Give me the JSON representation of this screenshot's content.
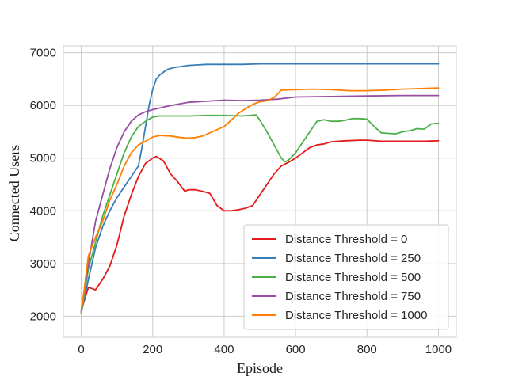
{
  "chart_data": {
    "type": "line",
    "xlabel": "Episode",
    "ylabel": "Connected Users",
    "xlim": [
      -50,
      1050
    ],
    "ylim": [
      1600,
      7130
    ],
    "xticks": [
      0,
      200,
      400,
      600,
      800,
      1000
    ],
    "yticks": [
      2000,
      3000,
      4000,
      5000,
      6000,
      7000
    ],
    "grid": true,
    "legend_position": "lower-right",
    "series": [
      {
        "name": "Distance Threshold = 0",
        "color": "#e41a1c",
        "x": [
          0,
          20,
          40,
          60,
          80,
          100,
          120,
          140,
          160,
          180,
          200,
          210,
          230,
          250,
          270,
          290,
          300,
          320,
          340,
          360,
          380,
          400,
          420,
          440,
          460,
          480,
          500,
          520,
          540,
          560,
          580,
          600,
          620,
          640,
          660,
          680,
          700,
          740,
          780,
          800,
          840,
          880,
          920,
          960,
          1000
        ],
        "values": [
          2100,
          2550,
          2500,
          2700,
          2950,
          3350,
          3900,
          4300,
          4650,
          4900,
          5000,
          5030,
          4950,
          4700,
          4550,
          4370,
          4400,
          4400,
          4370,
          4330,
          4100,
          4000,
          4000,
          4020,
          4050,
          4100,
          4300,
          4500,
          4700,
          4850,
          4920,
          5000,
          5100,
          5200,
          5250,
          5270,
          5310,
          5330,
          5340,
          5340,
          5320,
          5320,
          5320,
          5320,
          5330
        ]
      },
      {
        "name": "Distance Threshold = 250",
        "color": "#377eb8",
        "x": [
          0,
          20,
          40,
          60,
          80,
          100,
          120,
          140,
          160,
          170,
          180,
          190,
          200,
          210,
          220,
          240,
          260,
          280,
          300,
          350,
          400,
          450,
          500,
          600,
          700,
          800,
          900,
          1000
        ],
        "values": [
          2050,
          2700,
          3300,
          3700,
          4000,
          4250,
          4450,
          4650,
          4850,
          5200,
          5600,
          6000,
          6300,
          6500,
          6580,
          6680,
          6720,
          6740,
          6760,
          6780,
          6780,
          6780,
          6790,
          6790,
          6790,
          6790,
          6790,
          6790
        ]
      },
      {
        "name": "Distance Threshold = 500",
        "color": "#4daf4a",
        "x": [
          0,
          20,
          40,
          60,
          80,
          100,
          120,
          140,
          160,
          180,
          200,
          220,
          250,
          300,
          350,
          400,
          450,
          490,
          500,
          520,
          540,
          560,
          570,
          580,
          600,
          620,
          640,
          660,
          680,
          700,
          720,
          740,
          760,
          780,
          800,
          820,
          840,
          860,
          880,
          900,
          920,
          940,
          960,
          980,
          1000
        ],
        "values": [
          2050,
          2900,
          3400,
          3900,
          4300,
          4700,
          5100,
          5400,
          5600,
          5700,
          5780,
          5800,
          5800,
          5800,
          5810,
          5810,
          5800,
          5820,
          5720,
          5500,
          5250,
          5000,
          4930,
          4960,
          5100,
          5300,
          5500,
          5700,
          5730,
          5700,
          5700,
          5720,
          5750,
          5750,
          5740,
          5600,
          5480,
          5470,
          5460,
          5500,
          5520,
          5560,
          5550,
          5650,
          5660
        ]
      },
      {
        "name": "Distance Threshold = 750",
        "color": "#984ea3",
        "x": [
          0,
          20,
          40,
          60,
          80,
          100,
          120,
          140,
          160,
          180,
          200,
          250,
          300,
          350,
          400,
          450,
          500,
          550,
          600,
          700,
          800,
          900,
          1000
        ],
        "values": [
          2100,
          3000,
          3800,
          4300,
          4800,
          5200,
          5500,
          5700,
          5820,
          5880,
          5920,
          6000,
          6060,
          6080,
          6100,
          6090,
          6100,
          6120,
          6160,
          6170,
          6180,
          6190,
          6190
        ]
      },
      {
        "name": "Distance Threshold = 1000",
        "color": "#ff7f00",
        "x": [
          0,
          20,
          40,
          60,
          80,
          100,
          120,
          140,
          160,
          180,
          200,
          220,
          250,
          280,
          300,
          320,
          340,
          360,
          380,
          400,
          420,
          440,
          460,
          480,
          500,
          520,
          540,
          560,
          600,
          650,
          700,
          750,
          800,
          850,
          900,
          950,
          1000
        ],
        "values": [
          2050,
          3150,
          3500,
          3800,
          4200,
          4500,
          4850,
          5100,
          5250,
          5320,
          5400,
          5430,
          5420,
          5390,
          5380,
          5390,
          5420,
          5480,
          5540,
          5600,
          5720,
          5850,
          5940,
          6020,
          6070,
          6090,
          6150,
          6290,
          6300,
          6310,
          6300,
          6280,
          6280,
          6290,
          6310,
          6320,
          6330
        ]
      }
    ]
  }
}
